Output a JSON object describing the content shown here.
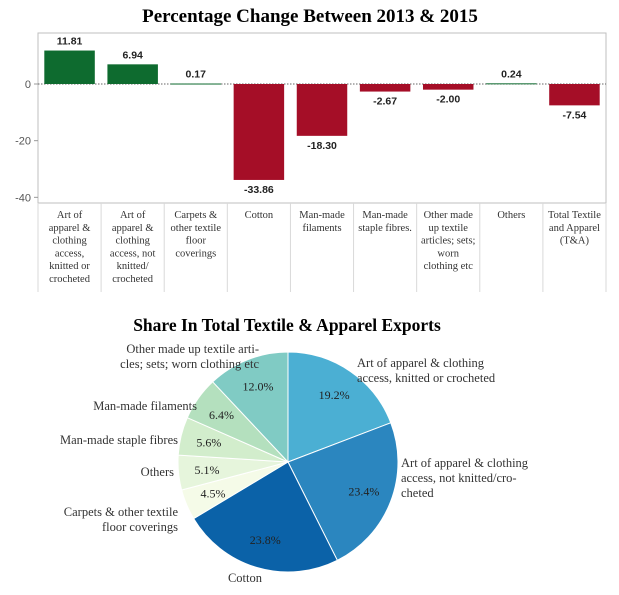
{
  "chart_data": [
    {
      "type": "bar",
      "title": "Percentage Change Between 2013 & 2015",
      "xlabel": "",
      "ylabel": "",
      "ylim": [
        -42,
        18
      ],
      "yticks": [
        0,
        -20,
        -40
      ],
      "grid": false,
      "zero_line": "dotted",
      "categories": [
        "Art of apparel & clothing access, knitted or crocheted",
        "Art of apparel & clothing access, not knitted/ crocheted",
        "Carpets & other textile floor coverings",
        "Cotton",
        "Man-made filaments",
        "Man-made staple fibres.",
        "Other made up textile articles; sets; worn clothing etc",
        "Others",
        "Total Textile and Apparel (T&A)"
      ],
      "category_label_lines": [
        [
          "Art of",
          "apparel &",
          "clothing",
          "access,",
          "knitted or",
          "crocheted"
        ],
        [
          "Art of",
          "apparel &",
          "clothing",
          "access, not",
          "knitted/",
          "crocheted"
        ],
        [
          "Carpets &",
          "other textile",
          "floor",
          "coverings"
        ],
        [
          "Cotton"
        ],
        [
          "Man-made",
          "filaments"
        ],
        [
          "Man-made",
          "staple fibres."
        ],
        [
          "Other made",
          "up textile",
          "articles; sets;",
          "worn",
          "clothing etc"
        ],
        [
          "Others"
        ],
        [
          "Total Textile",
          "and Apparel",
          "(T&A)"
        ]
      ],
      "values": [
        11.81,
        6.94,
        0.17,
        -33.86,
        -18.3,
        -2.67,
        -2.0,
        0.24,
        -7.54
      ],
      "value_labels": [
        "11.81",
        "6.94",
        "0.17",
        "-33.86",
        "-18.30",
        "-2.67",
        "-2.00",
        "0.24",
        "-7.54"
      ],
      "colors": {
        "positive": "#0e6b2f",
        "negative": "#a50e27"
      }
    },
    {
      "type": "pie",
      "title": "Share In Total Textile & Apparel Exports",
      "slices": [
        {
          "name_lines": [
            "Art of apparel & clothing",
            "access, knitted or crocheted"
          ],
          "value": 19.2,
          "label": "19.2%",
          "color": "#4bafd3"
        },
        {
          "name_lines": [
            "Art of apparel & clothing",
            "access, not knitted/cro-",
            "cheted"
          ],
          "value": 23.4,
          "label": "23.4%",
          "color": "#2b86bf"
        },
        {
          "name_lines": [
            "Cotton"
          ],
          "value": 23.8,
          "label": "23.8%",
          "color": "#0b62a8"
        },
        {
          "name_lines": [
            "Carpets & other textile",
            "floor coverings"
          ],
          "value": 4.5,
          "label": "4.5%",
          "color": "#f5fbe8"
        },
        {
          "name_lines": [
            "Others"
          ],
          "value": 5.1,
          "label": "5.1%",
          "color": "#e6f5dc"
        },
        {
          "name_lines": [
            "Man-made staple fibres"
          ],
          "value": 5.6,
          "label": "5.6%",
          "color": "#d2edcc"
        },
        {
          "name_lines": [
            "Man-made filaments"
          ],
          "value": 6.4,
          "label": "6.4%",
          "color": "#b4e0be"
        },
        {
          "name_lines": [
            "Other made up textile arti-",
            "cles; sets; worn clothing etc"
          ],
          "value": 12.0,
          "label": "12.0%",
          "color": "#80cbc4"
        }
      ]
    }
  ]
}
